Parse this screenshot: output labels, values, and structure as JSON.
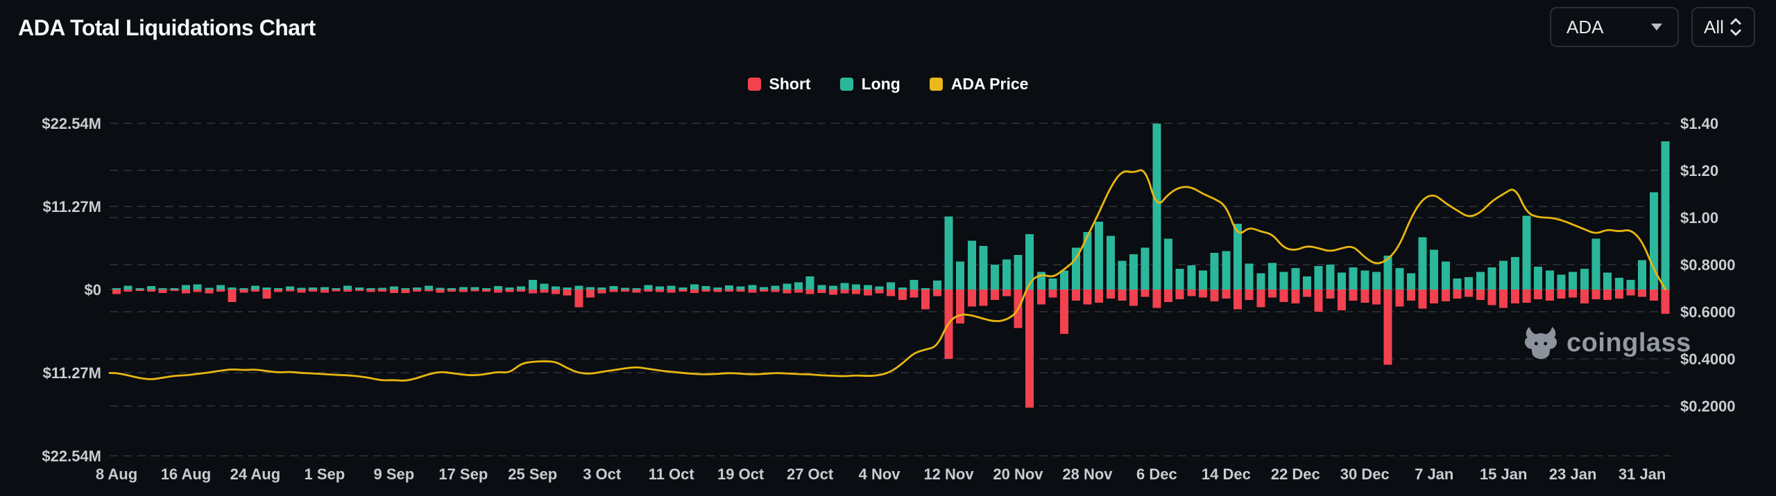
{
  "header": {
    "title": "ADA Total Liquidations Chart"
  },
  "controls": {
    "symbol_select": {
      "value": "ADA"
    },
    "range_select": {
      "value": "All"
    }
  },
  "legend": [
    {
      "label": "Short",
      "color": "#f2414f"
    },
    {
      "label": "Long",
      "color": "#2bb79c"
    },
    {
      "label": "ADA Price",
      "color": "#ecb81a"
    }
  ],
  "watermark": {
    "text": "coinglass"
  },
  "chart_data": {
    "type": "bar+line",
    "title": "ADA Total Liquidations Chart",
    "grid": "dashed-horizontal",
    "legend_position": "top-center",
    "left_axis": {
      "title": "liquidation value",
      "labels": [
        "$22.54M",
        "$11.27M",
        "$0",
        "$11.27M",
        "$22.54M"
      ],
      "values_m": [
        22.54,
        11.27,
        0,
        -11.27,
        -22.54
      ]
    },
    "right_axis": {
      "title": "ADA price",
      "labels": [
        "$1.40",
        "$1.20",
        "$1.00",
        "$0.8000",
        "$0.6000",
        "$0.4000",
        "$0.2000"
      ],
      "values": [
        1.4,
        1.2,
        1.0,
        0.8,
        0.6,
        0.4,
        0.2
      ]
    },
    "x_tick_labels": [
      "8 Aug",
      "16 Aug",
      "24 Aug",
      "1 Sep",
      "9 Sep",
      "17 Sep",
      "25 Sep",
      "3 Oct",
      "11 Oct",
      "19 Oct",
      "27 Oct",
      "4 Nov",
      "12 Nov",
      "20 Nov",
      "28 Nov",
      "6 Dec",
      "14 Dec",
      "22 Dec",
      "30 Dec",
      "7 Jan",
      "15 Jan",
      "23 Jan",
      "31 Jan"
    ],
    "series": [
      {
        "name": "Long",
        "unit": "USD millions",
        "values": [
          0.15,
          0.5,
          0.1,
          0.45,
          0.2,
          0.1,
          0.6,
          0.7,
          0.25,
          0.6,
          0.3,
          0.15,
          0.5,
          0.3,
          0.2,
          0.4,
          0.25,
          0.3,
          0.35,
          0.2,
          0.5,
          0.3,
          0.15,
          0.25,
          0.4,
          0.2,
          0.3,
          0.5,
          0.25,
          0.2,
          0.35,
          0.35,
          0.2,
          0.45,
          0.3,
          0.4,
          1.3,
          0.8,
          0.4,
          0.3,
          0.5,
          0.35,
          0.3,
          0.45,
          0.25,
          0.2,
          0.6,
          0.4,
          0.5,
          0.3,
          0.7,
          0.45,
          0.3,
          0.55,
          0.4,
          0.6,
          0.35,
          0.5,
          0.8,
          1.0,
          1.8,
          0.6,
          0.5,
          0.9,
          0.7,
          0.6,
          0.4,
          1.0,
          0.3,
          1.3,
          0.2,
          1.2,
          9.9,
          3.8,
          6.6,
          5.9,
          3.4,
          4.1,
          4.7,
          7.5,
          2.4,
          1.5,
          2.6,
          5.7,
          7.8,
          9.2,
          7.3,
          3.9,
          4.8,
          5.7,
          22.5,
          6.9,
          2.8,
          3.3,
          2.6,
          5.0,
          5.2,
          8.9,
          3.5,
          2.2,
          3.6,
          2.4,
          2.9,
          1.8,
          3.2,
          3.4,
          2.3,
          3.0,
          2.6,
          2.4,
          4.6,
          2.9,
          2.2,
          7.1,
          5.4,
          3.8,
          1.5,
          1.7,
          2.4,
          3.0,
          3.9,
          4.4,
          10.0,
          3.1,
          2.6,
          2.0,
          2.4,
          2.8,
          6.9,
          2.3,
          1.6,
          1.3,
          4.0,
          13.2,
          20.1
        ]
      },
      {
        "name": "Short",
        "unit": "USD millions",
        "values": [
          0.6,
          0.3,
          0.15,
          0.3,
          0.45,
          0.2,
          0.5,
          0.35,
          0.5,
          0.3,
          1.7,
          0.4,
          0.3,
          1.2,
          0.35,
          0.25,
          0.4,
          0.3,
          0.4,
          0.25,
          0.3,
          0.2,
          0.35,
          0.3,
          0.45,
          0.45,
          0.3,
          0.25,
          0.4,
          0.3,
          0.35,
          0.25,
          0.3,
          0.4,
          0.35,
          0.3,
          0.5,
          0.4,
          0.6,
          0.8,
          2.4,
          1.1,
          0.5,
          0.35,
          0.3,
          0.4,
          0.3,
          0.35,
          0.4,
          0.3,
          0.45,
          0.3,
          0.35,
          0.3,
          0.3,
          0.4,
          0.3,
          0.35,
          0.5,
          0.4,
          0.6,
          0.45,
          0.7,
          0.5,
          0.6,
          0.8,
          0.5,
          0.9,
          1.4,
          1.1,
          2.7,
          0.9,
          9.4,
          4.6,
          2.3,
          2.2,
          1.4,
          0.9,
          5.2,
          16.0,
          2.0,
          1.1,
          6.0,
          1.5,
          2.0,
          1.8,
          1.2,
          1.5,
          2.2,
          1.0,
          2.5,
          1.7,
          1.3,
          0.9,
          1.1,
          1.6,
          1.2,
          2.7,
          1.4,
          2.4,
          1.1,
          1.7,
          1.9,
          1.0,
          3.0,
          1.2,
          2.8,
          1.5,
          1.8,
          2.0,
          10.2,
          2.3,
          1.5,
          2.6,
          1.9,
          1.6,
          1.2,
          1.0,
          1.4,
          2.1,
          2.5,
          1.9,
          1.8,
          1.3,
          1.5,
          1.2,
          1.1,
          1.9,
          1.3,
          1.4,
          1.2,
          0.8,
          1.0,
          1.5,
          3.3
        ]
      },
      {
        "name": "ADA Price",
        "unit": "USD",
        "values": [
          0.34,
          0.33,
          0.318,
          0.312,
          0.32,
          0.328,
          0.33,
          0.336,
          0.342,
          0.35,
          0.356,
          0.352,
          0.355,
          0.348,
          0.342,
          0.345,
          0.34,
          0.338,
          0.335,
          0.332,
          0.33,
          0.326,
          0.318,
          0.308,
          0.31,
          0.306,
          0.318,
          0.335,
          0.345,
          0.34,
          0.332,
          0.33,
          0.335,
          0.345,
          0.34,
          0.38,
          0.388,
          0.39,
          0.388,
          0.36,
          0.34,
          0.336,
          0.345,
          0.352,
          0.36,
          0.365,
          0.358,
          0.35,
          0.345,
          0.34,
          0.336,
          0.334,
          0.336,
          0.34,
          0.337,
          0.334,
          0.336,
          0.34,
          0.338,
          0.335,
          0.334,
          0.33,
          0.328,
          0.326,
          0.33,
          0.327,
          0.33,
          0.345,
          0.38,
          0.425,
          0.44,
          0.452,
          0.56,
          0.59,
          0.585,
          0.57,
          0.558,
          0.565,
          0.6,
          0.73,
          0.76,
          0.745,
          0.78,
          0.82,
          0.92,
          1.02,
          1.13,
          1.2,
          1.19,
          1.21,
          1.04,
          1.1,
          1.13,
          1.13,
          1.1,
          1.08,
          1.05,
          0.92,
          0.96,
          0.94,
          0.93,
          0.87,
          0.86,
          0.88,
          0.87,
          0.855,
          0.87,
          0.88,
          0.83,
          0.8,
          0.82,
          0.88,
          1.0,
          1.08,
          1.1,
          1.06,
          1.03,
          1.0,
          1.02,
          1.07,
          1.1,
          1.13,
          1.02,
          1.0,
          1.0,
          0.99,
          0.97,
          0.95,
          0.93,
          0.95,
          0.94,
          0.95,
          0.9,
          0.78,
          0.695
        ]
      }
    ],
    "colors": {
      "short": "#f2414f",
      "long": "#2bb79c",
      "price": "#e8b611",
      "grid": "#383d44",
      "axis_text": "#c9ccd1"
    }
  }
}
